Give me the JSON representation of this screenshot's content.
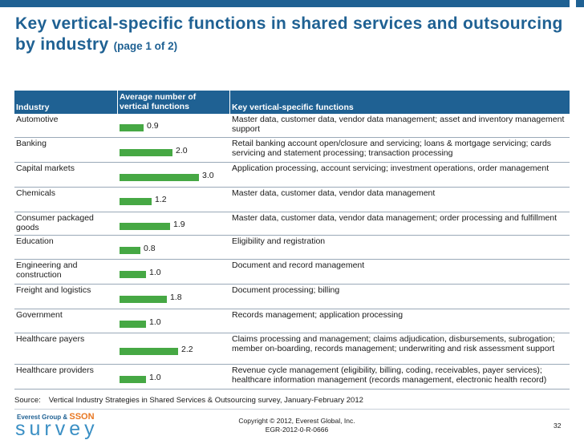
{
  "title": {
    "main": "Key vertical-specific functions in shared services and outsourcing by industry",
    "sub": "(page 1 of 2)"
  },
  "table": {
    "headers": {
      "industry": "Industry",
      "average": "Average number of vertical functions",
      "functions": "Key vertical-specific functions"
    },
    "rows": [
      {
        "industry": "Automotive",
        "value": 0.9,
        "label": "0.9",
        "functions": "Master data, customer data, vendor data management; asset and inventory management support"
      },
      {
        "industry": "Banking",
        "value": 2.0,
        "label": "2.0",
        "functions": "Retail banking account open/closure and servicing; loans & mortgage servicing; cards servicing and statement processing; transaction processing"
      },
      {
        "industry": "Capital markets",
        "value": 3.0,
        "label": "3.0",
        "functions": "Application processing, account servicing; investment operations, order management"
      },
      {
        "industry": "Chemicals",
        "value": 1.2,
        "label": "1.2",
        "functions": "Master data, customer data, vendor data management"
      },
      {
        "industry": "Consumer packaged goods",
        "value": 1.9,
        "label": "1.9",
        "functions": "Master data, customer data, vendor data management; order processing and fulfillment"
      },
      {
        "industry": "Education",
        "value": 0.8,
        "label": "0.8",
        "functions": "Eligibility and registration"
      },
      {
        "industry": "Engineering and construction",
        "value": 1.0,
        "label": "1.0",
        "functions": "Document and record management"
      },
      {
        "industry": "Freight and logistics",
        "value": 1.8,
        "label": "1.8",
        "functions": "Document processing; billing"
      },
      {
        "industry": "Government",
        "value": 1.0,
        "label": "1.0",
        "functions": "Records management; application processing"
      },
      {
        "industry": "Healthcare payers",
        "value": 2.2,
        "label": "2.2",
        "functions": "Claims processing and management; claims adjudication, disbursements, subrogation; member on-boarding, records management; underwriting and risk assessment support"
      },
      {
        "industry": "Healthcare providers",
        "value": 1.0,
        "label": "1.0",
        "functions": "Revenue cycle management (eligibility, billing, coding, receivables, payer services); healthcare information management (records management, electronic health record)"
      }
    ]
  },
  "source": {
    "label": "Source:",
    "text": "Vertical Industry Strategies in Shared Services & Outsourcing survey, January-February 2012"
  },
  "footer": {
    "logo_small": "Everest Group &",
    "logo_sson": "SSON",
    "logo_big": "survey",
    "copyright": "Copyright © 2012, Everest Global, Inc.",
    "doc_id": "EGR-2012-0-R-0666",
    "page": "32"
  },
  "colors": {
    "header_bg": "#1f6193",
    "bar": "#46a844",
    "title": "#1f6193"
  }
}
